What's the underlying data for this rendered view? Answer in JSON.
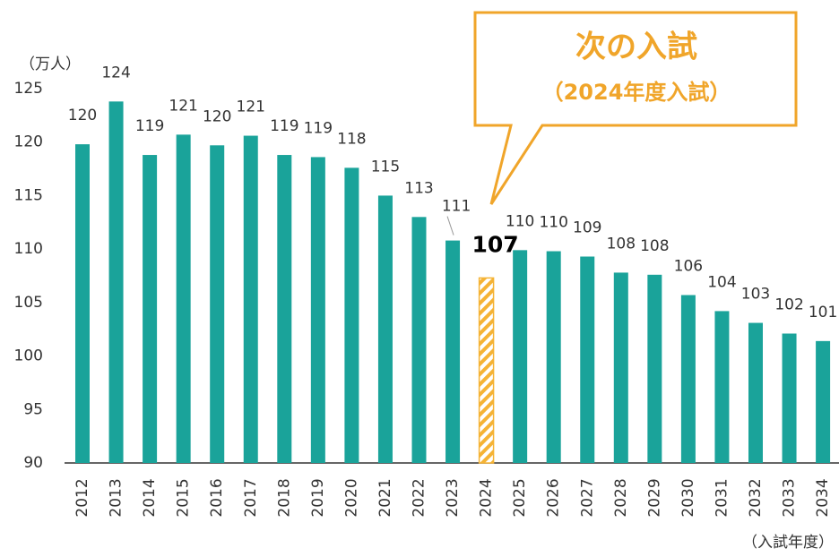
{
  "chart_data": {
    "type": "bar",
    "y_axis_label": "（万人）",
    "x_axis_label": "（入試年度）",
    "categories": [
      "2012",
      "2013",
      "2014",
      "2015",
      "2016",
      "2017",
      "2018",
      "2019",
      "2020",
      "2021",
      "2022",
      "2023",
      "2024",
      "2025",
      "2026",
      "2027",
      "2028",
      "2029",
      "2030",
      "2031",
      "2032",
      "2033",
      "2034"
    ],
    "values": [
      119.8,
      123.8,
      118.8,
      120.7,
      119.7,
      120.6,
      118.8,
      118.6,
      117.6,
      115.0,
      113.0,
      110.8,
      107.3,
      109.9,
      109.8,
      109.3,
      107.8,
      107.6,
      105.7,
      104.2,
      103.1,
      102.1,
      101.4
    ],
    "value_labels": [
      "120",
      "124",
      "119",
      "121",
      "120",
      "121",
      "119",
      "119",
      "118",
      "115",
      "113",
      "111",
      "107",
      "110",
      "110",
      "109",
      "108",
      "108",
      "106",
      "104",
      "103",
      "102",
      "101"
    ],
    "color": "#1aa39a",
    "highlight_index": 12,
    "highlight_color": "#f5b335",
    "callout": {
      "title": "次の入試",
      "subtitle": "（2024年度入試）",
      "color": "#f0a52a"
    },
    "ylim": [
      90,
      125
    ],
    "yticks": [
      90,
      95,
      100,
      105,
      110,
      115,
      120,
      125
    ],
    "grid": false
  }
}
